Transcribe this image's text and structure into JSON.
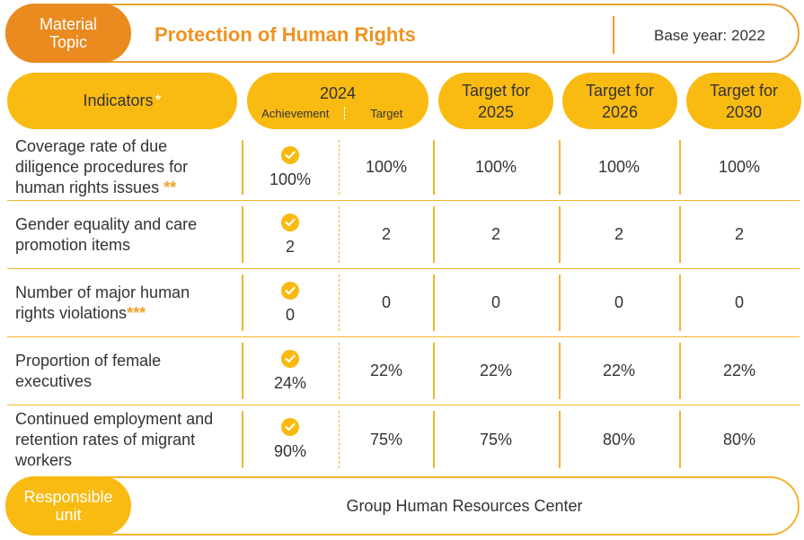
{
  "banner": {
    "pill_line1": "Material",
    "pill_line2": "Topic",
    "title": "Protection of Human Rights",
    "base_year": "Base year: 2022"
  },
  "header": {
    "indicators": "Indicators",
    "indicators_mark": "*",
    "year": "2024",
    "achievement": "Achievement",
    "target": "Target",
    "t2025_l1": "Target for",
    "t2025_l2": "2025",
    "t2026_l1": "Target for",
    "t2026_l2": "2026",
    "t2030_l1": "Target for",
    "t2030_l2": "2030"
  },
  "rows": [
    {
      "indicator": "Coverage rate of due diligence procedures for human rights issues",
      "mark": "**",
      "achievement": "100%",
      "target": "100%",
      "t2025": "100%",
      "t2026": "100%",
      "t2030": "100%"
    },
    {
      "indicator": "Gender equality and care promotion items",
      "mark": "",
      "achievement": "2",
      "target": "2",
      "t2025": "2",
      "t2026": "2",
      "t2030": "2"
    },
    {
      "indicator": "Number of major human rights violations",
      "mark": "***",
      "achievement": "0",
      "target": "0",
      "t2025": "0",
      "t2026": "0",
      "t2030": "0"
    },
    {
      "indicator": "Proportion of female executives",
      "mark": "",
      "achievement": "24%",
      "target": "22%",
      "t2025": "22%",
      "t2026": "22%",
      "t2030": "22%"
    },
    {
      "indicator": "Continued employment and retention rates of migrant workers",
      "mark": "",
      "achievement": "90%",
      "target": "75%",
      "t2025": "75%",
      "t2026": "80%",
      "t2030": "80%"
    }
  ],
  "footer": {
    "pill_line1": "Responsible",
    "pill_line2": "unit",
    "unit": "Group Human Resources Center"
  },
  "colors": {
    "orange": "#ea8a1f",
    "yellow": "#f9ba12",
    "border": "#f3b531"
  },
  "icons": {
    "achieved": "check-circle-icon"
  }
}
